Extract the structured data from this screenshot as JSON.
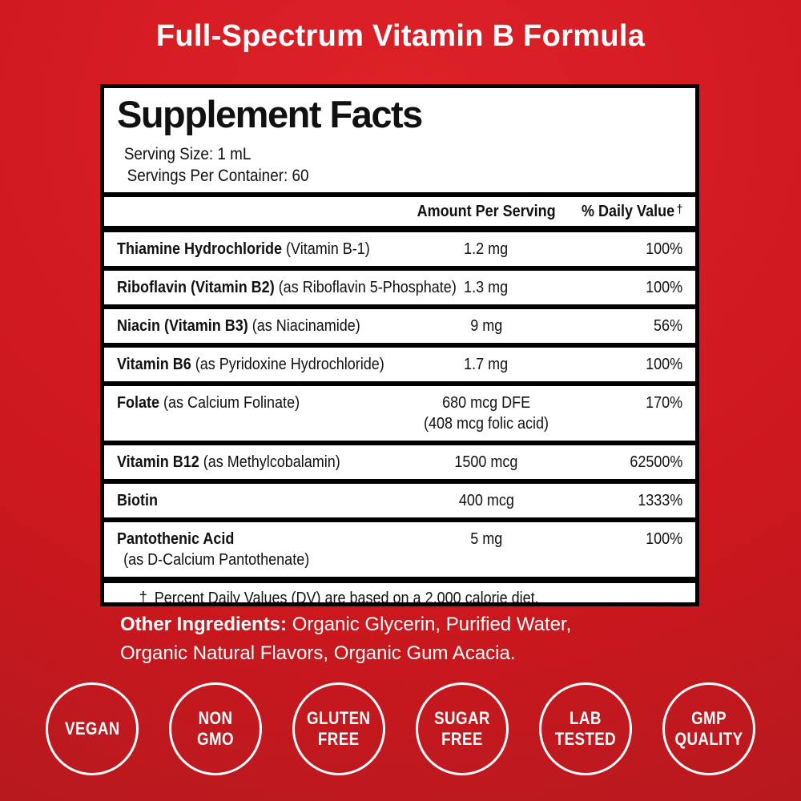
{
  "page_title": "Full-Spectrum Vitamin B Formula",
  "panel": {
    "title": "Supplement Facts",
    "serving_size": "Serving Size: 1 mL",
    "servings_per_container": "Servings Per Container: 60",
    "columns": {
      "amount": "Amount Per Serving",
      "dv": "% Daily Value",
      "dv_symbol": "†"
    },
    "rows": [
      {
        "name_bold": "Thiamine Hydrochloride",
        "name_rest": " (Vitamin B-1)",
        "amount": "1.2 mg",
        "dv": "100%"
      },
      {
        "name_bold": "Riboflavin (Vitamin B2)",
        "name_rest": " (as Riboflavin 5-Phosphate)",
        "amount": "1.3 mg",
        "dv": "100%"
      },
      {
        "name_bold": "Niacin (Vitamin B3)",
        "name_rest": " (as Niacinamide)",
        "amount": "9 mg",
        "dv": "56%"
      },
      {
        "name_bold": "Vitamin B6",
        "name_rest": " (as Pyridoxine Hydrochloride)",
        "amount": "1.7 mg",
        "dv": "100%"
      },
      {
        "name_bold": "Folate",
        "name_rest": " (as Calcium Folinate)",
        "amount": "680 mcg DFE",
        "amount_line2": "(408 mcg folic acid)",
        "dv": "170%"
      },
      {
        "name_bold": "Vitamin B12",
        "name_rest": " (as Methylcobalamin)",
        "amount": "1500 mcg",
        "dv": "62500%"
      },
      {
        "name_bold": "Biotin",
        "name_rest": "",
        "amount": "400 mcg",
        "dv": "1333%"
      },
      {
        "name_bold": "Pantothenic Acid",
        "name_rest": "",
        "name_line2": "(as D-Calcium Pantothenate)",
        "amount": "5 mg",
        "dv": "100%"
      }
    ],
    "footnote_symbol": "†",
    "footnote": "Percent Daily Values (DV) are based on a 2,000 calorie diet."
  },
  "other_ingredients": {
    "label": "Other Ingredients:",
    "line1_rest": " Organic Glycerin, Purified Water,",
    "line2": "Organic Natural Flavors, Organic Gum Acacia."
  },
  "badges": [
    {
      "lines": [
        "VEGAN"
      ]
    },
    {
      "lines": [
        "NON",
        "GMO"
      ]
    },
    {
      "lines": [
        "GLUTEN",
        "FREE"
      ]
    },
    {
      "lines": [
        "SUGAR",
        "FREE"
      ]
    },
    {
      "lines": [
        "LAB",
        "TESTED"
      ]
    },
    {
      "lines": [
        "GMP",
        "QUALITY"
      ]
    }
  ],
  "colors": {
    "background_top": "#dd2228",
    "background_bottom": "#a81a20",
    "panel_bg": "#ffffff",
    "panel_border": "#000000",
    "text_dark": "#111111",
    "text_light": "#ffffff"
  }
}
